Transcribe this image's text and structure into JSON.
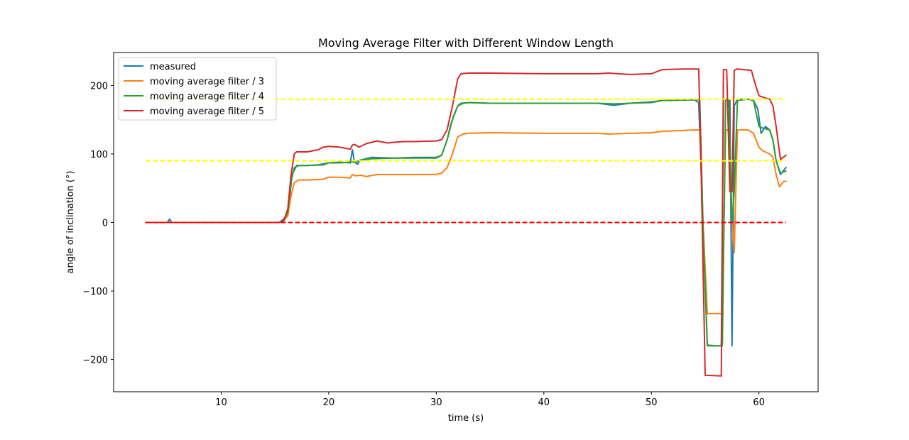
{
  "chart_data": {
    "type": "line",
    "title": "Moving Average Filter with Different Window Length",
    "xlabel": "time (s)",
    "ylabel": "angle of inclination (°)",
    "xlim": [
      0,
      65.5
    ],
    "ylim": [
      -247,
      248
    ],
    "xticks": [
      10,
      20,
      30,
      40,
      50,
      60
    ],
    "yticks": [
      -200,
      -100,
      0,
      100,
      200
    ],
    "grid": false,
    "legend_position": "upper left",
    "reference_lines": [
      {
        "y": 180,
        "x": [
          3,
          62.5
        ],
        "color": "#ffff00",
        "style": "dashed"
      },
      {
        "y": 90,
        "x": [
          3,
          62.5
        ],
        "color": "#ffff00",
        "style": "dashed"
      },
      {
        "y": 0,
        "x": [
          3,
          62.5
        ],
        "color": "#ff0000",
        "style": "dashed"
      }
    ],
    "series": [
      {
        "name": "measured",
        "color": "#1f77b4",
        "x": [
          3,
          5,
          5.2,
          5.4,
          15.4,
          15.8,
          16.2,
          16.6,
          17,
          18,
          19,
          20,
          21,
          22,
          22.2,
          22.4,
          22.7,
          22.9,
          23.2,
          24,
          26,
          28,
          30,
          30.5,
          31,
          31.3,
          31.6,
          32,
          32.3,
          33,
          35,
          40,
          45,
          46.5,
          48,
          50,
          51,
          54,
          54.4,
          54.8,
          55.2,
          56,
          56.5,
          56.7,
          57,
          57.3,
          57.5,
          57.7,
          58,
          59,
          59.5,
          59.9,
          60.2,
          60.6,
          61,
          61.3,
          61.6,
          62,
          62.5
        ],
        "y": [
          0,
          0,
          5,
          0,
          0,
          5,
          12,
          70,
          83,
          83,
          84,
          87,
          88,
          87,
          106,
          88,
          85,
          91,
          92,
          95,
          94,
          95,
          95,
          98,
          120,
          140,
          155,
          170,
          174,
          175,
          174,
          174,
          174,
          171,
          174,
          175,
          178,
          179,
          175,
          -5,
          -180,
          -180,
          -180,
          180,
          180,
          180,
          -180,
          170,
          180,
          180,
          178,
          165,
          130,
          140,
          135,
          120,
          90,
          70,
          80
        ]
      },
      {
        "name": "moving average filter / 3",
        "color": "#ff7f0e",
        "x": [
          3,
          15.4,
          15.8,
          16.2,
          16.5,
          16.8,
          17.2,
          18,
          19.5,
          20,
          21,
          22,
          22.2,
          22.5,
          23,
          23.5,
          24.5,
          26,
          28,
          30,
          30.5,
          31,
          31.5,
          32,
          32.5,
          33,
          35,
          40,
          45,
          46,
          48,
          50,
          51,
          54,
          54.5,
          54.8,
          55.2,
          56,
          56.6,
          56.9,
          57.2,
          57.5,
          57.7,
          58,
          59,
          59.5,
          60,
          60.3,
          61,
          61.3,
          61.6,
          61.9,
          62.3,
          62.5
        ],
        "y": [
          0,
          0,
          2,
          10,
          40,
          58,
          62,
          62,
          63,
          66,
          66,
          65,
          70,
          68,
          69,
          67,
          70,
          70,
          70,
          70,
          72,
          80,
          100,
          125,
          129,
          130,
          131,
          130,
          130,
          129,
          130,
          131,
          133,
          135,
          135,
          0,
          -133,
          -133,
          -133,
          135,
          135,
          0,
          -44,
          135,
          135,
          130,
          110,
          105,
          100,
          95,
          70,
          52,
          60,
          60
        ]
      },
      {
        "name": "moving average filter / 4",
        "color": "#2ca02c",
        "x": [
          3,
          15.4,
          15.8,
          16.2,
          16.5,
          16.8,
          17.2,
          18,
          19.5,
          20,
          21,
          22,
          22.5,
          23,
          24,
          26,
          28,
          30,
          30.5,
          31,
          31.5,
          32,
          32.5,
          33,
          35,
          40,
          45,
          46.5,
          48,
          50,
          51,
          54,
          54.5,
          54.8,
          55.2,
          56,
          56.6,
          56.9,
          57.2,
          57.5,
          57.7,
          58,
          59,
          59.5,
          60,
          60.3,
          61,
          61.3,
          61.6,
          62,
          62.5
        ],
        "y": [
          0,
          0,
          3,
          15,
          60,
          80,
          83,
          83,
          84,
          87,
          87,
          88,
          88,
          91,
          93,
          94,
          94,
          94,
          98,
          120,
          150,
          170,
          174,
          175,
          174,
          174,
          174,
          173,
          174,
          176,
          178,
          179,
          179,
          0,
          -179,
          -180,
          -180,
          179,
          179,
          0,
          45,
          178,
          180,
          178,
          140,
          138,
          135,
          120,
          90,
          72,
          75
        ]
      },
      {
        "name": "moving average filter / 5",
        "color": "#d62728",
        "x": [
          3,
          15.4,
          15.8,
          16.2,
          16.5,
          16.8,
          17,
          17.5,
          18,
          19,
          19.5,
          20,
          21,
          22,
          22.2,
          22.4,
          22.8,
          23.5,
          24.5,
          25.5,
          26,
          27,
          28,
          30,
          30.5,
          31,
          31.5,
          32,
          32.3,
          33,
          35,
          40,
          45,
          46,
          48,
          50,
          51,
          53,
          54.4,
          54.6,
          55,
          56.5,
          56.7,
          57,
          57.3,
          57.5,
          57.7,
          58,
          59.3,
          59.6,
          60,
          60.5,
          61,
          61.3,
          61.6,
          62,
          62.5
        ],
        "y": [
          0,
          0,
          2,
          20,
          70,
          100,
          103,
          103,
          103,
          106,
          110,
          111,
          110,
          107,
          113,
          114,
          110,
          115,
          119,
          116,
          117,
          118,
          118,
          119,
          121,
          135,
          170,
          210,
          217,
          218,
          218,
          217,
          217,
          218,
          216,
          217,
          223,
          224,
          224,
          100,
          -223,
          -224,
          223,
          223,
          45,
          45,
          222,
          224,
          222,
          205,
          185,
          182,
          180,
          170,
          140,
          92,
          98
        ]
      }
    ]
  }
}
